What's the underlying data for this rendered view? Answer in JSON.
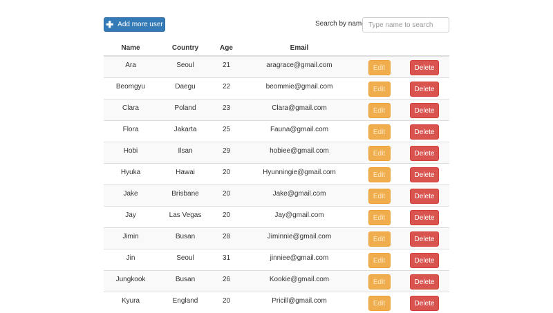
{
  "toolbar": {
    "add_label": "Add more user",
    "add_icon": "plus-icon",
    "search_label": "Search by name:",
    "search_placeholder": "Type name to search",
    "search_value": ""
  },
  "colors": {
    "primary": "#337ab7",
    "warning": "#f0ad4e",
    "danger": "#d9534f"
  },
  "table": {
    "headers": [
      "Name",
      "Country",
      "Age",
      "Email",
      "",
      ""
    ],
    "edit_label": "Edit",
    "delete_label": "Delete",
    "rows": [
      [
        "Ara",
        "Seoul",
        "21",
        "aragrace@gmail.com"
      ],
      [
        "Beomgyu",
        "Daegu",
        "22",
        "beommie@gmail.com"
      ],
      [
        "Clara",
        "Poland",
        "23",
        "Clara@gmail.com"
      ],
      [
        "Flora",
        "Jakarta",
        "25",
        "Fauna@gmail.com"
      ],
      [
        "Hobi",
        "Ilsan",
        "29",
        "hobiee@gmail.com"
      ],
      [
        "Hyuka",
        "Hawai",
        "20",
        "Hyunningie@gmail.com"
      ],
      [
        "Jake",
        "Brisbane",
        "20",
        "Jake@gmail.com"
      ],
      [
        "Jay",
        "Las Vegas",
        "20",
        "Jay@gmail.com"
      ],
      [
        "Jimin",
        "Busan",
        "28",
        "Jiminnie@gmail.com"
      ],
      [
        "Jin",
        "Seoul",
        "31",
        "jinniee@gmail.com"
      ],
      [
        "Jungkook",
        "Busan",
        "26",
        "Kookie@gmail.com"
      ],
      [
        "Kyura",
        "England",
        "20",
        "Pricill@gmail.com"
      ]
    ]
  }
}
